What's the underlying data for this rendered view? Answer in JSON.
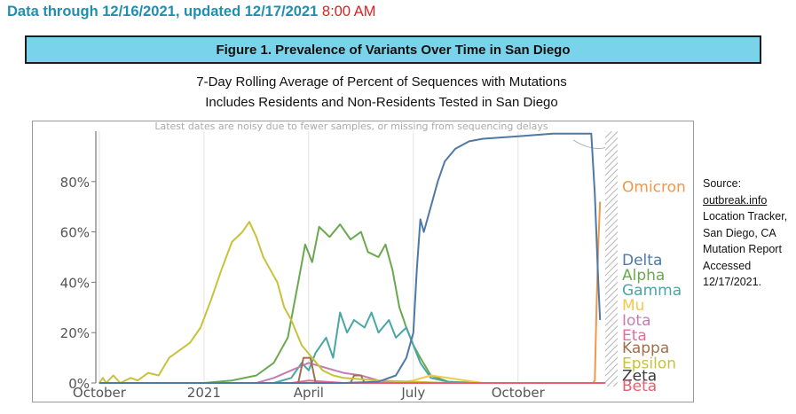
{
  "header": {
    "text": "Data through 12/16/2021, updated 12/17/2021",
    "time": "8:00 AM"
  },
  "figure": {
    "title": "Figure 1. Prevalence of Variants Over Time in San Diego",
    "subtitle1": "7-Day Rolling Average of Percent of Sequences with Mutations",
    "subtitle2": "Includes Residents and Non-Residents Tested in San Diego"
  },
  "source": {
    "label": "Source:",
    "link": "outbreak.info",
    "rest": "Location Tracker, San Diego, CA Mutation Report Accessed 12/17/2021."
  },
  "chart_data": {
    "type": "line",
    "title": "Figure 1. Prevalence of Variants Over Time in San Diego",
    "note": "Latest dates are noisy due to fewer samples, or missing from sequencing delays",
    "x_unit": "months since Oct 1, 2020",
    "xlim": [
      -0.1,
      14.6
    ],
    "ylim": [
      0,
      100
    ],
    "x_ticks": [
      {
        "label": "October",
        "x": 0
      },
      {
        "label": "2021",
        "x": 3
      },
      {
        "label": "April",
        "x": 6
      },
      {
        "label": "July",
        "x": 9
      },
      {
        "label": "October",
        "x": 12
      }
    ],
    "y_ticks": [
      {
        "label": "0%",
        "y": 0
      },
      {
        "label": "20%",
        "y": 20
      },
      {
        "label": "40%",
        "y": 40
      },
      {
        "label": "60%",
        "y": 60
      },
      {
        "label": "80%",
        "y": 80
      }
    ],
    "series": [
      {
        "name": "Omicron",
        "color": "#f0974a",
        "label_y": 78,
        "points": [
          [
            14.15,
            0
          ],
          [
            14.2,
            1
          ],
          [
            14.25,
            30
          ],
          [
            14.3,
            55
          ],
          [
            14.35,
            72
          ]
        ]
      },
      {
        "name": "Delta",
        "color": "#4e79a7",
        "label_y": 49,
        "points": [
          [
            0,
            0
          ],
          [
            7,
            0
          ],
          [
            8,
            0.5
          ],
          [
            8.5,
            3
          ],
          [
            8.8,
            10
          ],
          [
            9,
            20
          ],
          [
            9.1,
            45
          ],
          [
            9.2,
            65
          ],
          [
            9.3,
            60
          ],
          [
            9.5,
            70
          ],
          [
            9.7,
            80
          ],
          [
            9.9,
            88
          ],
          [
            10.2,
            93
          ],
          [
            10.6,
            96
          ],
          [
            11,
            97
          ],
          [
            12,
            98
          ],
          [
            13,
            99
          ],
          [
            14.1,
            99
          ],
          [
            14.2,
            75
          ],
          [
            14.3,
            40
          ],
          [
            14.35,
            25
          ]
        ]
      },
      {
        "name": "Alpha",
        "color": "#6aa84f",
        "label_y": 43,
        "points": [
          [
            0,
            0
          ],
          [
            3,
            0
          ],
          [
            3.8,
            1
          ],
          [
            4.5,
            3
          ],
          [
            5,
            8
          ],
          [
            5.4,
            18
          ],
          [
            5.7,
            40
          ],
          [
            5.9,
            55
          ],
          [
            6.1,
            48
          ],
          [
            6.3,
            62
          ],
          [
            6.6,
            58
          ],
          [
            6.9,
            63
          ],
          [
            7.2,
            57
          ],
          [
            7.5,
            60
          ],
          [
            7.7,
            52
          ],
          [
            8,
            50
          ],
          [
            8.2,
            55
          ],
          [
            8.4,
            45
          ],
          [
            8.6,
            30
          ],
          [
            8.8,
            22
          ],
          [
            9,
            15
          ],
          [
            9.2,
            10
          ],
          [
            9.5,
            3
          ],
          [
            10,
            0.5
          ],
          [
            11,
            0
          ]
        ]
      },
      {
        "name": "Gamma",
        "color": "#4aa6a6",
        "label_y": 37,
        "points": [
          [
            0,
            0
          ],
          [
            5,
            0
          ],
          [
            5.5,
            2
          ],
          [
            5.8,
            8
          ],
          [
            6,
            5
          ],
          [
            6.2,
            12
          ],
          [
            6.5,
            18
          ],
          [
            6.7,
            10
          ],
          [
            6.9,
            28
          ],
          [
            7.1,
            20
          ],
          [
            7.3,
            25
          ],
          [
            7.6,
            22
          ],
          [
            7.8,
            28
          ],
          [
            8,
            20
          ],
          [
            8.3,
            25
          ],
          [
            8.5,
            18
          ],
          [
            8.8,
            22
          ],
          [
            9,
            15
          ],
          [
            9.2,
            8
          ],
          [
            9.5,
            2
          ],
          [
            10,
            0.5
          ],
          [
            10.5,
            0
          ]
        ]
      },
      {
        "name": "Mu",
        "color": "#f2c94c",
        "label_y": 31,
        "points": [
          [
            0,
            0
          ],
          [
            8.5,
            0
          ],
          [
            9,
            1
          ],
          [
            9.5,
            3
          ],
          [
            10,
            2
          ],
          [
            10.5,
            1
          ],
          [
            11,
            0
          ]
        ]
      },
      {
        "name": "Iota",
        "color": "#c47db3",
        "label_y": 25,
        "points": [
          [
            0,
            0
          ],
          [
            4.5,
            0
          ],
          [
            5,
            2
          ],
          [
            5.5,
            5
          ],
          [
            6,
            8
          ],
          [
            6.5,
            6
          ],
          [
            7,
            4
          ],
          [
            7.5,
            3
          ],
          [
            8,
            1
          ],
          [
            8.5,
            0
          ]
        ]
      },
      {
        "name": "Eta",
        "color": "#e56b9a",
        "label_y": 19,
        "points": [
          [
            0,
            0
          ],
          [
            5.5,
            0
          ],
          [
            6,
            1
          ],
          [
            6.5,
            0.5
          ],
          [
            7,
            0
          ]
        ]
      },
      {
        "name": "Kappa",
        "color": "#a0704d",
        "label_y": 14,
        "points": [
          [
            0,
            0
          ],
          [
            5.7,
            0
          ],
          [
            5.85,
            10
          ],
          [
            6.05,
            10
          ],
          [
            6.2,
            0
          ],
          [
            7.2,
            0
          ],
          [
            7.3,
            3
          ],
          [
            7.5,
            3
          ],
          [
            7.6,
            0
          ]
        ]
      },
      {
        "name": "Epsilon",
        "color": "#c8c23a",
        "label_y": 8,
        "points": [
          [
            0,
            0
          ],
          [
            0.1,
            2
          ],
          [
            0.2,
            0
          ],
          [
            0.4,
            3
          ],
          [
            0.6,
            0
          ],
          [
            0.9,
            2
          ],
          [
            1.1,
            1
          ],
          [
            1.4,
            4
          ],
          [
            1.7,
            3
          ],
          [
            2,
            10
          ],
          [
            2.3,
            13
          ],
          [
            2.6,
            16
          ],
          [
            2.9,
            22
          ],
          [
            3.2,
            33
          ],
          [
            3.5,
            45
          ],
          [
            3.8,
            56
          ],
          [
            4.1,
            60
          ],
          [
            4.3,
            64
          ],
          [
            4.5,
            58
          ],
          [
            4.7,
            50
          ],
          [
            4.9,
            45
          ],
          [
            5.1,
            40
          ],
          [
            5.3,
            30
          ],
          [
            5.5,
            25
          ],
          [
            5.8,
            15
          ],
          [
            6.1,
            10
          ],
          [
            6.4,
            5
          ],
          [
            6.7,
            3
          ],
          [
            7,
            2
          ],
          [
            8,
            1
          ],
          [
            9,
            0.5
          ],
          [
            10,
            0
          ]
        ]
      },
      {
        "name": "Zeta",
        "color": "#3a3a3a",
        "label_y": 3,
        "points": [
          [
            0,
            0
          ],
          [
            14.5,
            0
          ]
        ]
      },
      {
        "name": "Beta",
        "color": "#e8606e",
        "label_y": -1,
        "points": [
          [
            0,
            0
          ],
          [
            14.5,
            0
          ]
        ]
      }
    ]
  }
}
